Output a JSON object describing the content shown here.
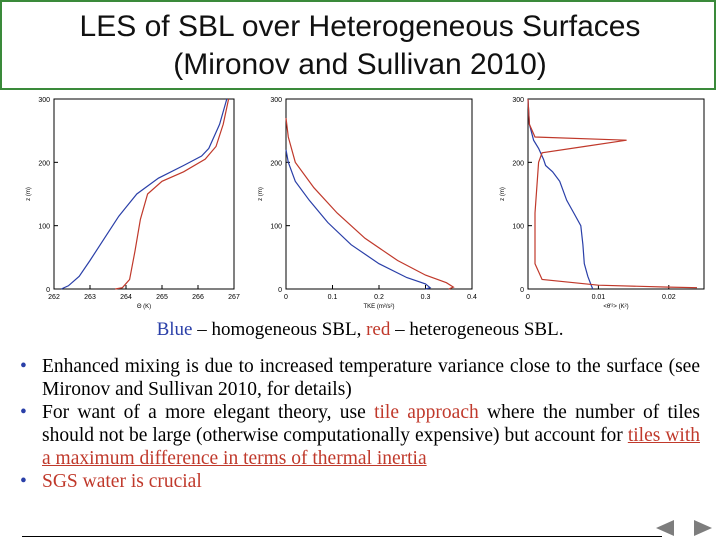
{
  "title": {
    "line1": "LES of SBL over Heterogeneous Surfaces",
    "line2": "(Mironov and Sullivan 2010)"
  },
  "chart_data": [
    {
      "type": "line",
      "xlabel": "Θ (K)",
      "ylabel": "z (m)",
      "xlim": [
        262,
        267
      ],
      "ylim": [
        0,
        300
      ],
      "x_ticks": [
        "262",
        "263",
        "264",
        "265",
        "266",
        "267"
      ],
      "y_ticks": [
        "0",
        "100",
        "200",
        "300"
      ],
      "series": [
        {
          "name": "homogeneous",
          "color": "#2a3fa8",
          "points": [
            [
              262.2,
              0
            ],
            [
              262.4,
              5
            ],
            [
              262.7,
              20
            ],
            [
              263.0,
              45
            ],
            [
              263.4,
              80
            ],
            [
              263.8,
              115
            ],
            [
              264.3,
              150
            ],
            [
              264.9,
              175
            ],
            [
              265.6,
              195
            ],
            [
              266.1,
              210
            ],
            [
              266.3,
              222
            ],
            [
              266.6,
              260
            ],
            [
              266.8,
              300
            ]
          ]
        },
        {
          "name": "heterogeneous",
          "color": "#c0392b",
          "points": [
            [
              263.7,
              0
            ],
            [
              263.9,
              2
            ],
            [
              264.1,
              15
            ],
            [
              264.25,
              60
            ],
            [
              264.4,
              110
            ],
            [
              264.6,
              150
            ],
            [
              265.0,
              170
            ],
            [
              265.6,
              185
            ],
            [
              266.2,
              205
            ],
            [
              266.5,
              225
            ],
            [
              266.7,
              260
            ],
            [
              266.85,
              300
            ]
          ]
        }
      ]
    },
    {
      "type": "line",
      "xlabel": "TKE (m²/s²)",
      "ylabel": "z (m)",
      "xlim": [
        0,
        0.4
      ],
      "ylim": [
        0,
        300
      ],
      "x_ticks": [
        "0",
        "0.1",
        "0.2",
        "0.3",
        "0.4"
      ],
      "y_ticks": [
        "0",
        "100",
        "200",
        "300"
      ],
      "series": [
        {
          "name": "homogeneous",
          "color": "#2a3fa8",
          "points": [
            [
              0.0,
              220
            ],
            [
              0.005,
              200
            ],
            [
              0.02,
              170
            ],
            [
              0.05,
              140
            ],
            [
              0.09,
              105
            ],
            [
              0.14,
              70
            ],
            [
              0.2,
              40
            ],
            [
              0.26,
              18
            ],
            [
              0.3,
              8
            ],
            [
              0.31,
              2
            ],
            [
              0.3,
              0
            ]
          ]
        },
        {
          "name": "heterogeneous",
          "color": "#c0392b",
          "points": [
            [
              0.0,
              270
            ],
            [
              0.005,
              240
            ],
            [
              0.02,
              200
            ],
            [
              0.06,
              160
            ],
            [
              0.11,
              120
            ],
            [
              0.17,
              80
            ],
            [
              0.24,
              45
            ],
            [
              0.3,
              22
            ],
            [
              0.345,
              10
            ],
            [
              0.36,
              3
            ],
            [
              0.35,
              0
            ]
          ]
        }
      ]
    },
    {
      "type": "line",
      "xlabel": "<θ'²> (K²)",
      "ylabel": "z (m)",
      "xlim": [
        0,
        0.025
      ],
      "ylim": [
        0,
        300
      ],
      "x_ticks": [
        "0",
        "0.01",
        "0.02"
      ],
      "y_ticks": [
        "0",
        "100",
        "200",
        "300"
      ],
      "series": [
        {
          "name": "homogeneous",
          "color": "#2a3fa8",
          "points": [
            [
              0.0,
              300
            ],
            [
              0.0002,
              260
            ],
            [
              0.0008,
              235
            ],
            [
              0.0015,
              222
            ],
            [
              0.0022,
              205
            ],
            [
              0.0025,
              195
            ],
            [
              0.0035,
              185
            ],
            [
              0.0045,
              170
            ],
            [
              0.0055,
              140
            ],
            [
              0.0065,
              120
            ],
            [
              0.0075,
              100
            ],
            [
              0.0078,
              70
            ],
            [
              0.008,
              40
            ],
            [
              0.0085,
              20
            ],
            [
              0.009,
              5
            ],
            [
              0.0092,
              0
            ]
          ]
        },
        {
          "name": "heterogeneous",
          "color": "#c0392b",
          "points": [
            [
              0.0,
              300
            ],
            [
              0.0002,
              260
            ],
            [
              0.001,
              240
            ],
            [
              0.014,
              235
            ],
            [
              0.008,
              225
            ],
            [
              0.002,
              215
            ],
            [
              0.0015,
              200
            ],
            [
              0.001,
              120
            ],
            [
              0.001,
              40
            ],
            [
              0.002,
              15
            ],
            [
              0.01,
              6
            ],
            [
              0.02,
              3
            ],
            [
              0.024,
              2
            ]
          ]
        }
      ]
    }
  ],
  "caption": {
    "blue": "Blue",
    "mid": " – homogeneous SBL, ",
    "red": "red",
    "end": " – heterogeneous SBL."
  },
  "bullets": {
    "b1": "Enhanced mixing is due to increased temperature variance close to the surface (see Mironov and Sullivan 2010, for details)",
    "b2_pre": "For want of a more elegant theory, use ",
    "b2_hl": "tile approach",
    "b2_mid": " where the number of tiles should not be large (otherwise computationally expensive) but account for ",
    "b2_ul": "tiles with a maximum difference in terms of thermal inertia",
    "b3": "SGS water is crucial"
  },
  "nav": {
    "prev": "previous",
    "next": "next"
  }
}
